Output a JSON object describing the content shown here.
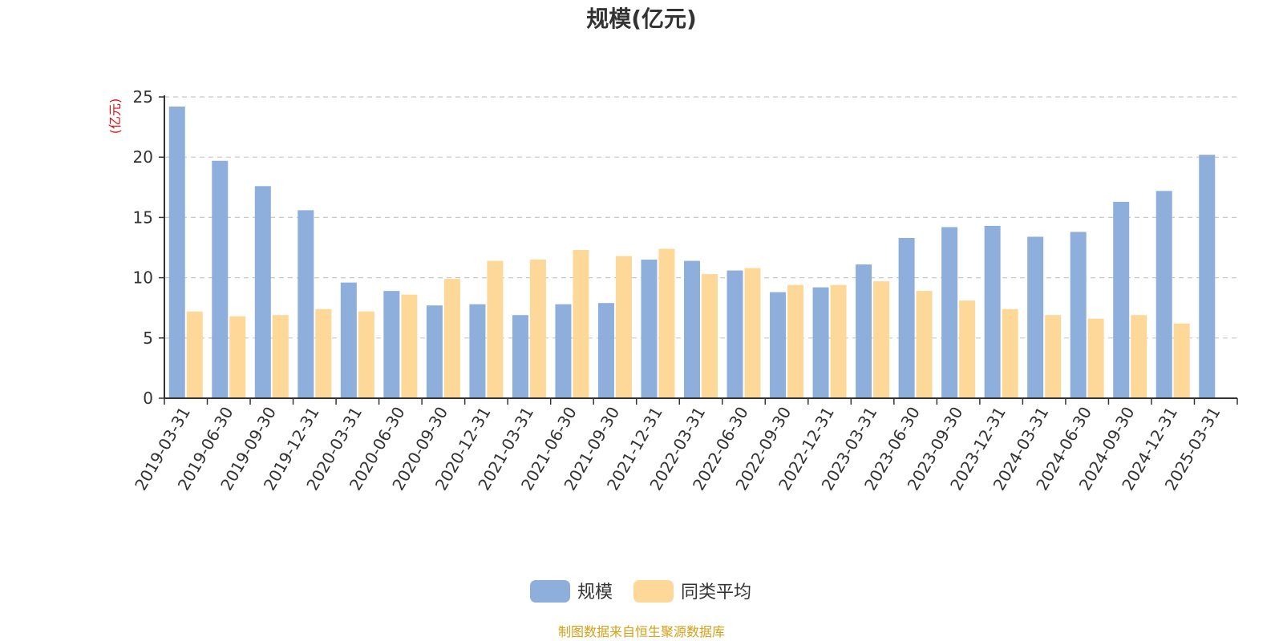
{
  "chart_data": {
    "type": "bar",
    "title": "规模(亿元)",
    "ylabel": "(亿元)",
    "ylim": [
      0,
      25
    ],
    "yticks": [
      0,
      5,
      10,
      15,
      20,
      25
    ],
    "grid": "horizontal-dashed",
    "legend_position": "bottom-center",
    "categories": [
      "2019-03-31",
      "2019-06-30",
      "2019-09-30",
      "2019-12-31",
      "2020-03-31",
      "2020-06-30",
      "2020-09-30",
      "2020-12-31",
      "2021-03-31",
      "2021-06-30",
      "2021-09-30",
      "2021-12-31",
      "2022-03-31",
      "2022-06-30",
      "2022-09-30",
      "2022-12-31",
      "2023-03-31",
      "2023-06-30",
      "2023-09-30",
      "2023-12-31",
      "2024-03-31",
      "2024-06-30",
      "2024-09-30",
      "2024-12-31",
      "2025-03-31"
    ],
    "series": [
      {
        "name": "规模",
        "color": "#8eaedb",
        "values": [
          24.2,
          19.7,
          17.6,
          15.6,
          9.6,
          8.9,
          7.7,
          7.8,
          6.9,
          7.8,
          7.9,
          11.5,
          11.4,
          10.6,
          8.8,
          9.2,
          11.1,
          13.3,
          14.2,
          14.3,
          13.4,
          13.8,
          16.3,
          17.2,
          20.2
        ]
      },
      {
        "name": "同类平均",
        "color": "#fdd899",
        "values": [
          7.2,
          6.8,
          6.9,
          7.4,
          7.2,
          8.6,
          9.9,
          11.4,
          11.5,
          12.3,
          11.8,
          12.4,
          10.3,
          10.8,
          9.4,
          9.4,
          9.7,
          8.9,
          8.1,
          7.4,
          6.9,
          6.6,
          6.9,
          6.2,
          null
        ]
      }
    ]
  },
  "source_text": "制图数据来自恒生聚源数据库"
}
